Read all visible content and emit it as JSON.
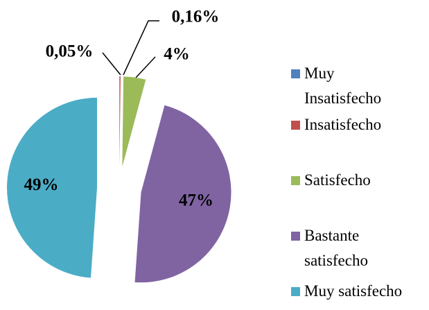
{
  "chart_data": {
    "type": "pie",
    "categories": [
      "Muy Insatisfecho",
      "Insatisfecho",
      "Satisfecho",
      "Bastante satisfecho",
      "Muy satisfecho"
    ],
    "values": [
      0.05,
      0.16,
      4,
      47,
      49
    ],
    "value_labels": [
      "0,05%",
      "0,16%",
      "4%",
      "47%",
      "49%"
    ],
    "colors": [
      "#4f81bd",
      "#c0504d",
      "#9bbb59",
      "#8064a2",
      "#4bacc6"
    ],
    "legend": "right"
  }
}
